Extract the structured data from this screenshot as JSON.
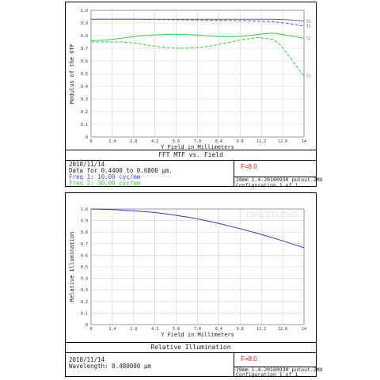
{
  "chart_data": [
    {
      "type": "line",
      "title": "FFT MTF vs. Field",
      "xlabel": "Y Field in Millimeters",
      "ylabel": "Modulus of the OTF",
      "xlim": [
        0,
        14
      ],
      "ylim": [
        0,
        1.0
      ],
      "x_ticks": [
        "0",
        "1.4",
        "2.8",
        "4.2",
        "5.6",
        "7.0",
        "8.4",
        "9.8",
        "11.2",
        "12.6",
        "14"
      ],
      "y_ticks": [
        "0",
        "0.1",
        "0.2",
        "0.3",
        "0.4",
        "0.5",
        "0.6",
        "0.7",
        "0.8",
        "0.9",
        "1.0"
      ],
      "grid": true,
      "series": [
        {
          "name": "S1",
          "color": "#5a5aa8",
          "dash": false,
          "x": [
            0,
            2,
            4,
            6,
            8,
            10,
            12,
            13,
            14
          ],
          "y": [
            0.93,
            0.93,
            0.93,
            0.93,
            0.93,
            0.93,
            0.93,
            0.925,
            0.915
          ]
        },
        {
          "name": "T1",
          "color": "#5a5aa8",
          "dash": true,
          "x": [
            0,
            2,
            4,
            6,
            8,
            10,
            12,
            13,
            14
          ],
          "y": [
            0.93,
            0.93,
            0.928,
            0.925,
            0.922,
            0.918,
            0.91,
            0.895,
            0.875
          ]
        },
        {
          "name": "S2",
          "color": "#44c844",
          "dash": false,
          "x": [
            0,
            1,
            2,
            3,
            4,
            5,
            6,
            7,
            8,
            9,
            10,
            11,
            12,
            13,
            14
          ],
          "y": [
            0.76,
            0.765,
            0.78,
            0.795,
            0.805,
            0.81,
            0.81,
            0.805,
            0.795,
            0.79,
            0.795,
            0.81,
            0.82,
            0.8,
            0.78
          ]
        },
        {
          "name": "T2",
          "color": "#44c844",
          "dash": true,
          "x": [
            0,
            1,
            2,
            3,
            4,
            5,
            6,
            7,
            8,
            9,
            10,
            11,
            12,
            12.5,
            13,
            13.5,
            14
          ],
          "y": [
            0.75,
            0.75,
            0.75,
            0.74,
            0.72,
            0.705,
            0.7,
            0.705,
            0.72,
            0.745,
            0.77,
            0.785,
            0.77,
            0.72,
            0.64,
            0.56,
            0.48
          ]
        }
      ]
    },
    {
      "type": "line",
      "title": "Relative Illumination",
      "xlabel": "Y Field in Millimeters",
      "ylabel": "Relative Illumination",
      "xlim": [
        0,
        14
      ],
      "ylim": [
        0,
        1.0
      ],
      "x_ticks": [
        "0",
        "1.4",
        "2.8",
        "4.2",
        "5.6",
        "7.0",
        "8.4",
        "9.8",
        "11.2",
        "12.6",
        "14"
      ],
      "y_ticks": [
        "0",
        "0.1",
        "0.2",
        "0.3",
        "0.4",
        "0.5",
        "0.6",
        "0.7",
        "0.8",
        "0.9",
        "1.0"
      ],
      "grid": true,
      "series": [
        {
          "color": "#3535b8",
          "dash": false,
          "x": [
            0,
            1.4,
            2.8,
            4.2,
            5.6,
            7.0,
            8.4,
            9.8,
            11.2,
            12.6,
            14
          ],
          "y": [
            1.0,
            0.995,
            0.985,
            0.97,
            0.945,
            0.915,
            0.875,
            0.83,
            0.78,
            0.725,
            0.665
          ]
        }
      ]
    }
  ],
  "mtf_info": {
    "date": "2018/11/14",
    "data_range": "Data for 0.4400 to 0.6800 µm.",
    "freq1": "Freq 1:   10.00 cyc/mm",
    "freq2": "Freq 2:   30.00 cyc/mm",
    "fnumber": "F=8.0",
    "filename": "28mm 1.4-20160930 putout.ZMX",
    "config": "Configuration 1 of 1"
  },
  "ri_info": {
    "date": "2018/11/14",
    "wavelength": "Wavelength: 0.480000 µm",
    "fnumber": "F=8.0",
    "filename": "28mm 1.4-20160930 putout.ZMX",
    "config": "Configuration 1 of 1"
  },
  "watermark": "OPESTUDIO",
  "colors": {
    "freq1": "#4a4ac8",
    "freq2": "#44c844",
    "fnumber": "#e02020"
  }
}
